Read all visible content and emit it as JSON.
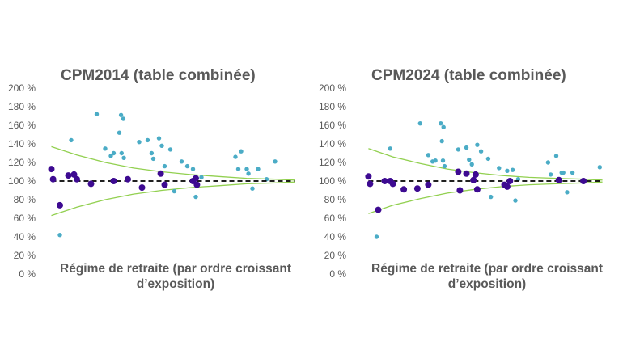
{
  "chart_data": [
    {
      "type": "scatter",
      "title": "CPM2014 (table combinée)",
      "xlabel": "Régime de retraite (par ordre croissant d’exposition)",
      "xlabel_lines": [
        "Régime de retraite (par ordre croissant",
        "d’exposition)"
      ],
      "ylabel": "",
      "ylim": [
        0,
        200
      ],
      "xlim": [
        0,
        44
      ],
      "y_ticks": [
        "0 %",
        "20 %",
        "40 %",
        "60 %",
        "80 %",
        "100 %",
        "120 %",
        "140 %",
        "160 %",
        "180 %",
        "200 %"
      ],
      "grid": false,
      "colors": {
        "light": "#4BACC6",
        "dark": "#3D0A91",
        "band": "#92D050",
        "reference": "#000000"
      },
      "reference_y": 100,
      "band_upper": [
        [
          0.5,
          137
        ],
        [
          5,
          128
        ],
        [
          10,
          120
        ],
        [
          15,
          114
        ],
        [
          20,
          110
        ],
        [
          25,
          107
        ],
        [
          30,
          105
        ],
        [
          35,
          103
        ],
        [
          40,
          102
        ],
        [
          43.5,
          101
        ]
      ],
      "band_lower": [
        [
          0.5,
          63
        ],
        [
          5,
          72
        ],
        [
          10,
          80
        ],
        [
          15,
          86
        ],
        [
          20,
          90
        ],
        [
          25,
          93
        ],
        [
          30,
          95
        ],
        [
          35,
          97
        ],
        [
          40,
          98
        ],
        [
          43.5,
          99
        ]
      ],
      "series": [
        {
          "values": [
            {
              "x": 2,
              "y": 42
            },
            {
              "x": 4,
              "y": 144
            },
            {
              "x": 8.5,
              "y": 172
            },
            {
              "x": 10,
              "y": 135
            },
            {
              "x": 11,
              "y": 127
            },
            {
              "x": 11.5,
              "y": 130
            },
            {
              "x": 12.5,
              "y": 152
            },
            {
              "x": 12.8,
              "y": 171
            },
            {
              "x": 13.2,
              "y": 167
            },
            {
              "x": 12.9,
              "y": 130
            },
            {
              "x": 13.3,
              "y": 125
            },
            {
              "x": 16,
              "y": 142
            },
            {
              "x": 17.5,
              "y": 144
            },
            {
              "x": 18.2,
              "y": 130
            },
            {
              "x": 18.5,
              "y": 124
            },
            {
              "x": 19.5,
              "y": 146
            },
            {
              "x": 20,
              "y": 138
            },
            {
              "x": 20.5,
              "y": 116
            },
            {
              "x": 21.5,
              "y": 134
            },
            {
              "x": 22.2,
              "y": 89
            },
            {
              "x": 23.5,
              "y": 121
            },
            {
              "x": 24.5,
              "y": 116
            },
            {
              "x": 25.5,
              "y": 113
            },
            {
              "x": 26,
              "y": 83
            },
            {
              "x": 27,
              "y": 104
            },
            {
              "x": 33,
              "y": 126
            },
            {
              "x": 33.5,
              "y": 113
            },
            {
              "x": 34,
              "y": 132
            },
            {
              "x": 35,
              "y": 113
            },
            {
              "x": 35.3,
              "y": 108
            },
            {
              "x": 36,
              "y": 92
            },
            {
              "x": 37,
              "y": 113
            },
            {
              "x": 38.5,
              "y": 102
            },
            {
              "x": 40,
              "y": 121
            }
          ]
        },
        {
          "values": [
            {
              "x": 0.5,
              "y": 113
            },
            {
              "x": 0.8,
              "y": 102
            },
            {
              "x": 2,
              "y": 74
            },
            {
              "x": 3.5,
              "y": 106
            },
            {
              "x": 4.5,
              "y": 107
            },
            {
              "x": 5,
              "y": 102
            },
            {
              "x": 7.5,
              "y": 97
            },
            {
              "x": 11.5,
              "y": 100
            },
            {
              "x": 14,
              "y": 102
            },
            {
              "x": 16.5,
              "y": 93
            },
            {
              "x": 19.8,
              "y": 108
            },
            {
              "x": 20.5,
              "y": 96
            },
            {
              "x": 25.5,
              "y": 100
            },
            {
              "x": 26,
              "y": 103
            },
            {
              "x": 26.2,
              "y": 96
            }
          ]
        }
      ]
    },
    {
      "type": "scatter",
      "title": "CPM2024 (table combinée)",
      "xlabel": "Régime de retraite (par ordre croissant d’exposition)",
      "xlabel_lines": [
        "Régime de retraite (par ordre croissant",
        "d’exposition)"
      ],
      "ylabel": "",
      "ylim": [
        0,
        200
      ],
      "xlim": [
        0,
        44
      ],
      "y_ticks": [
        "0 %",
        "20 %",
        "40 %",
        "60 %",
        "80 %",
        "100 %",
        "120 %",
        "140 %",
        "160 %",
        "180 %",
        "200 %"
      ],
      "grid": false,
      "colors": {
        "light": "#4BACC6",
        "dark": "#3D0A91",
        "band": "#92D050",
        "reference": "#000000"
      },
      "reference_y": 100,
      "band_upper": [
        [
          0.5,
          135
        ],
        [
          5,
          126
        ],
        [
          10,
          119
        ],
        [
          15,
          113
        ],
        [
          20,
          109
        ],
        [
          25,
          106
        ],
        [
          30,
          104
        ],
        [
          35,
          103
        ],
        [
          40,
          102
        ],
        [
          43.5,
          101
        ]
      ],
      "band_lower": [
        [
          0.5,
          65
        ],
        [
          5,
          74
        ],
        [
          10,
          81
        ],
        [
          15,
          87
        ],
        [
          20,
          91
        ],
        [
          25,
          94
        ],
        [
          30,
          96
        ],
        [
          35,
          97
        ],
        [
          40,
          98
        ],
        [
          43.5,
          99
        ]
      ],
      "series": [
        {
          "values": [
            {
              "x": 2,
              "y": 40
            },
            {
              "x": 4.5,
              "y": 135
            },
            {
              "x": 10,
              "y": 162
            },
            {
              "x": 11.5,
              "y": 128
            },
            {
              "x": 12.3,
              "y": 121
            },
            {
              "x": 12.8,
              "y": 122
            },
            {
              "x": 13.8,
              "y": 162
            },
            {
              "x": 14,
              "y": 143
            },
            {
              "x": 14.3,
              "y": 158
            },
            {
              "x": 14.2,
              "y": 122
            },
            {
              "x": 14.5,
              "y": 116
            },
            {
              "x": 17,
              "y": 134
            },
            {
              "x": 18.5,
              "y": 136
            },
            {
              "x": 19,
              "y": 123
            },
            {
              "x": 19.5,
              "y": 118
            },
            {
              "x": 20.5,
              "y": 139
            },
            {
              "x": 21.2,
              "y": 132
            },
            {
              "x": 22.5,
              "y": 124
            },
            {
              "x": 23,
              "y": 83
            },
            {
              "x": 24.5,
              "y": 114
            },
            {
              "x": 26,
              "y": 111
            },
            {
              "x": 27,
              "y": 112
            },
            {
              "x": 27.5,
              "y": 79
            },
            {
              "x": 28,
              "y": 102
            },
            {
              "x": 33.5,
              "y": 120
            },
            {
              "x": 34,
              "y": 107
            },
            {
              "x": 35,
              "y": 127
            },
            {
              "x": 36,
              "y": 109
            },
            {
              "x": 36.3,
              "y": 109
            },
            {
              "x": 37,
              "y": 88
            },
            {
              "x": 38,
              "y": 109
            },
            {
              "x": 40,
              "y": 99
            },
            {
              "x": 43,
              "y": 115
            }
          ]
        },
        {
          "values": [
            {
              "x": 0.5,
              "y": 105
            },
            {
              "x": 0.8,
              "y": 97
            },
            {
              "x": 2.3,
              "y": 69
            },
            {
              "x": 3.5,
              "y": 100
            },
            {
              "x": 4.5,
              "y": 100
            },
            {
              "x": 5,
              "y": 97
            },
            {
              "x": 7,
              "y": 91
            },
            {
              "x": 9.5,
              "y": 92
            },
            {
              "x": 11.5,
              "y": 96
            },
            {
              "x": 17,
              "y": 110
            },
            {
              "x": 17.3,
              "y": 90
            },
            {
              "x": 18.5,
              "y": 108
            },
            {
              "x": 19.8,
              "y": 101
            },
            {
              "x": 20.2,
              "y": 107
            },
            {
              "x": 20.5,
              "y": 91
            },
            {
              "x": 25.5,
              "y": 96
            },
            {
              "x": 26,
              "y": 94
            },
            {
              "x": 26.5,
              "y": 100
            },
            {
              "x": 35.5,
              "y": 101
            },
            {
              "x": 40,
              "y": 100
            }
          ]
        }
      ]
    }
  ]
}
